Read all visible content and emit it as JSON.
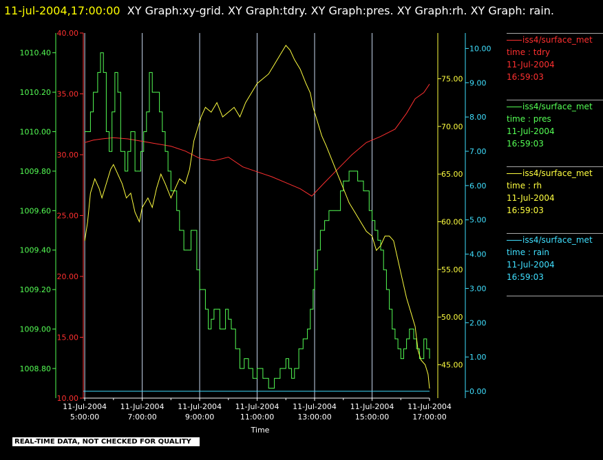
{
  "header": {
    "timestamp": "11-jul-2004,17:00:00",
    "graphs": "XY Graph:xy-grid.  XY Graph:tdry.  XY Graph:pres.  XY Graph:rh.  XY Graph: rain."
  },
  "notice": "REAL-TIME DATA, NOT CHECKED FOR QUALITY",
  "legend": [
    {
      "source": "iss4/surface_met",
      "field": "time : tdry",
      "date": "11-Jul-2004",
      "time": "16:59:03",
      "color": "#ff3030"
    },
    {
      "source": "iss4/surface_met",
      "field": "time : pres",
      "date": "11-Jul-2004",
      "time": "16:59:03",
      "color": "#55ff55"
    },
    {
      "source": "iss4/surface_met",
      "field": "time : rh",
      "date": "11-Jul-2004",
      "time": "16:59:03",
      "color": "#ffff40"
    },
    {
      "source": "iss4/surface_met",
      "field": "time : rain",
      "date": "11-Jul-2004",
      "time": "16:59:03",
      "color": "#40e0ff"
    }
  ],
  "chart_data": {
    "type": "line",
    "xlabel": "Time",
    "x_ticks": [
      {
        "date": "11-Jul-2004",
        "time": "5:00:00"
      },
      {
        "date": "11-Jul-2004",
        "time": "7:00:00"
      },
      {
        "date": "11-Jul-2004",
        "time": "9:00:00"
      },
      {
        "date": "11-Jul-2004",
        "time": "11:00:00"
      },
      {
        "date": "11-Jul-2004",
        "time": "13:00:00"
      },
      {
        "date": "11-Jul-2004",
        "time": "15:00:00"
      },
      {
        "date": "11-Jul-2004",
        "time": "17:00:00"
      }
    ],
    "x_range_hours": [
      4.95,
      17.0
    ],
    "grid": true,
    "axes": {
      "pres": {
        "range": [
          1008.65,
          1010.5
        ],
        "ticks": [
          "1008.80",
          "1009.00",
          "1009.20",
          "1009.40",
          "1009.60",
          "1009.80",
          "1010.00",
          "1010.20",
          "1010.40"
        ],
        "color": "#55ff55"
      },
      "tdry": {
        "range": [
          10,
          40
        ],
        "ticks": [
          "10.00",
          "15.00",
          "20.00",
          "25.00",
          "30.00",
          "35.00",
          "40.00"
        ],
        "color": "#ff3030"
      },
      "rh": {
        "range": [
          41.5,
          79.8
        ],
        "ticks": [
          "45.00",
          "50.00",
          "55.00",
          "60.00",
          "65.00",
          "70.00",
          "75.00"
        ],
        "color": "#ffff40"
      },
      "rain": {
        "range": [
          -0.2,
          10.45
        ],
        "ticks": [
          "0.00",
          "1.00",
          "2.00",
          "3.00",
          "4.00",
          "5.00",
          "6.00",
          "7.00",
          "8.00",
          "9.00",
          "10.00"
        ],
        "color": "#40e0ff"
      }
    },
    "series": [
      {
        "name": "tdry",
        "axis": "tdry",
        "x": [
          5.0,
          5.3,
          5.6,
          6.0,
          6.5,
          7.0,
          7.5,
          8.0,
          8.5,
          9.0,
          9.5,
          10.0,
          10.5,
          11.0,
          11.5,
          12.0,
          12.5,
          12.9,
          13.3,
          13.8,
          14.3,
          14.8,
          15.3,
          15.8,
          16.2,
          16.5,
          16.8,
          17.0
        ],
        "values": [
          31.0,
          31.2,
          31.3,
          31.4,
          31.3,
          31.1,
          30.9,
          30.7,
          30.3,
          29.7,
          29.5,
          29.8,
          29.0,
          28.6,
          28.2,
          27.7,
          27.2,
          26.6,
          27.6,
          28.8,
          30.0,
          31.0,
          31.5,
          32.1,
          33.4,
          34.6,
          35.1,
          35.8
        ]
      },
      {
        "name": "pres",
        "axis": "pres",
        "x": [
          5.0,
          5.2,
          5.3,
          5.45,
          5.55,
          5.65,
          5.75,
          5.85,
          5.95,
          6.05,
          6.15,
          6.25,
          6.4,
          6.5,
          6.6,
          6.75,
          6.85,
          6.95,
          7.05,
          7.15,
          7.25,
          7.35,
          7.5,
          7.6,
          7.7,
          7.8,
          7.9,
          8.0,
          8.1,
          8.2,
          8.3,
          8.45,
          8.6,
          8.7,
          8.8,
          8.9,
          9.0,
          9.1,
          9.2,
          9.3,
          9.4,
          9.5,
          9.7,
          9.9,
          10.0,
          10.1,
          10.25,
          10.4,
          10.55,
          10.7,
          10.85,
          11.0,
          11.2,
          11.4,
          11.6,
          11.8,
          12.0,
          12.1,
          12.2,
          12.3,
          12.45,
          12.6,
          12.75,
          12.85,
          12.95,
          13.0,
          13.1,
          13.2,
          13.35,
          13.5,
          13.7,
          13.9,
          14.0,
          14.2,
          14.5,
          14.7,
          14.9,
          15.0,
          15.1,
          15.2,
          15.3,
          15.4,
          15.5,
          15.6,
          15.7,
          15.8,
          15.9,
          16.0,
          16.1,
          16.2,
          16.3,
          16.45,
          16.55,
          16.65,
          16.8,
          16.9,
          17.0
        ],
        "values": [
          1010.0,
          1010.1,
          1010.2,
          1010.3,
          1010.4,
          1010.3,
          1010.0,
          1009.9,
          1010.1,
          1010.3,
          1010.2,
          1009.9,
          1009.8,
          1009.9,
          1010.0,
          1009.8,
          1009.8,
          1009.9,
          1010.0,
          1010.1,
          1010.3,
          1010.2,
          1010.2,
          1010.1,
          1010.0,
          1009.9,
          1009.8,
          1009.7,
          1009.7,
          1009.6,
          1009.5,
          1009.4,
          1009.4,
          1009.5,
          1009.5,
          1009.3,
          1009.2,
          1009.2,
          1009.1,
          1009.0,
          1009.05,
          1009.1,
          1009.0,
          1009.1,
          1009.05,
          1009.0,
          1008.9,
          1008.8,
          1008.85,
          1008.8,
          1008.75,
          1008.8,
          1008.75,
          1008.7,
          1008.75,
          1008.8,
          1008.85,
          1008.8,
          1008.75,
          1008.8,
          1008.9,
          1008.95,
          1009.0,
          1009.1,
          1009.2,
          1009.3,
          1009.4,
          1009.5,
          1009.55,
          1009.6,
          1009.6,
          1009.7,
          1009.75,
          1009.8,
          1009.75,
          1009.7,
          1009.6,
          1009.55,
          1009.5,
          1009.45,
          1009.4,
          1009.3,
          1009.2,
          1009.1,
          1009.0,
          1008.95,
          1008.9,
          1008.85,
          1008.9,
          1008.95,
          1009.0,
          1008.95,
          1008.9,
          1008.85,
          1008.95,
          1008.9,
          1008.85
        ]
      },
      {
        "name": "rh",
        "axis": "rh",
        "x": [
          5.0,
          5.1,
          5.2,
          5.35,
          5.5,
          5.6,
          5.75,
          5.9,
          6.0,
          6.15,
          6.3,
          6.45,
          6.6,
          6.75,
          6.9,
          7.0,
          7.2,
          7.35,
          7.5,
          7.65,
          7.8,
          8.0,
          8.15,
          8.3,
          8.5,
          8.65,
          8.8,
          8.95,
          9.05,
          9.2,
          9.4,
          9.6,
          9.8,
          10.0,
          10.2,
          10.4,
          10.6,
          10.8,
          11.0,
          11.2,
          11.4,
          11.6,
          11.8,
          12.0,
          12.15,
          12.3,
          12.5,
          12.7,
          12.85,
          12.95,
          13.1,
          13.25,
          13.4,
          13.6,
          13.8,
          14.0,
          14.2,
          14.4,
          14.6,
          14.8,
          15.0,
          15.15,
          15.3,
          15.45,
          15.6,
          15.75,
          15.9,
          16.05,
          16.2,
          16.35,
          16.5,
          16.6,
          16.7,
          16.85,
          16.95,
          17.0
        ],
        "values": [
          58.0,
          60.0,
          63.0,
          64.5,
          63.5,
          62.5,
          64.0,
          65.5,
          66.0,
          65.0,
          64.0,
          62.5,
          63.0,
          61.0,
          60.0,
          61.5,
          62.5,
          61.5,
          63.5,
          65.0,
          64.0,
          62.5,
          63.5,
          64.5,
          64.0,
          65.5,
          68.5,
          70.0,
          71.0,
          72.0,
          71.5,
          72.5,
          71.0,
          71.5,
          72.0,
          71.0,
          72.5,
          73.5,
          74.5,
          75.0,
          75.5,
          76.5,
          77.5,
          78.5,
          78.0,
          77.0,
          76.0,
          74.5,
          73.5,
          72.0,
          70.5,
          69.0,
          68.0,
          66.5,
          65.0,
          63.5,
          62.0,
          61.0,
          60.0,
          59.0,
          58.5,
          57.0,
          57.5,
          58.5,
          58.5,
          58.0,
          56.0,
          54.0,
          52.0,
          50.5,
          49.0,
          46.5,
          45.5,
          45.0,
          44.0,
          42.5
        ]
      },
      {
        "name": "rain",
        "axis": "rain",
        "x": [
          4.95,
          17.0
        ],
        "values": [
          0.0,
          0.0
        ]
      }
    ]
  }
}
